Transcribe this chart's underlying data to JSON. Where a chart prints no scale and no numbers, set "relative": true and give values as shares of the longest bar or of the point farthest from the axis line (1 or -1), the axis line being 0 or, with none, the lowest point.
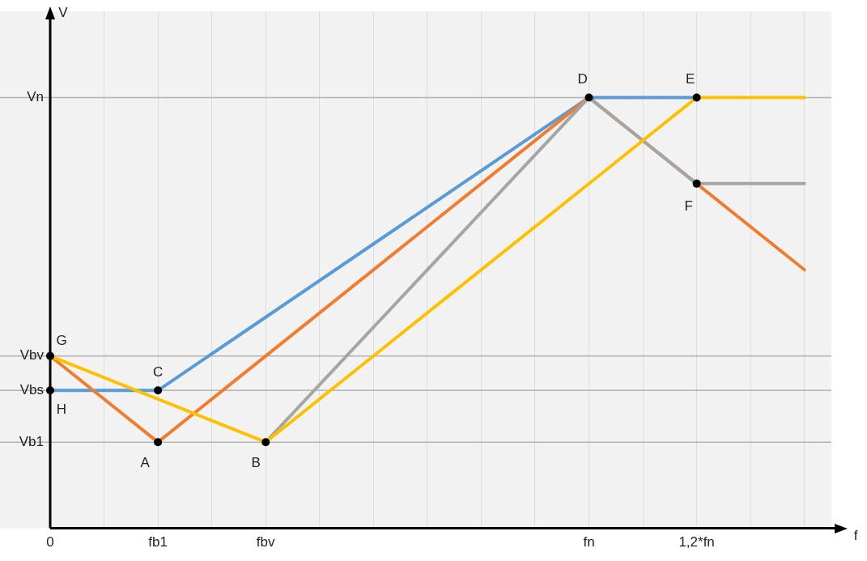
{
  "chart_data": {
    "type": "line",
    "relative": true,
    "xlabel": "f",
    "categories": [
      "0",
      null,
      "fb1",
      null,
      "fbv",
      null,
      null,
      null,
      null,
      null,
      "fn",
      null,
      "1,2*fn",
      null,
      null
    ],
    "grid": "x",
    "line_style": "solid",
    "ref_lines": [
      {
        "axis": "y",
        "value": 1,
        "label": "Vn",
        "color": "#b4b4b4"
      },
      {
        "axis": "y",
        "value": 0.4,
        "label": "Vbv",
        "color": "#b4b4b4"
      },
      {
        "axis": "y",
        "value": 0.32,
        "label": "Vbs",
        "color": "#b4b4b4"
      },
      {
        "axis": "y",
        "value": 0.2,
        "label": "Vb1",
        "color": "#b4b4b4"
      }
    ],
    "series": [
      {
        "color": "#5b9bd5",
        "values": [
          0.32,
          null,
          0.32,
          null,
          null,
          null,
          null,
          null,
          null,
          null,
          1,
          null,
          1,
          null,
          null
        ]
      },
      {
        "color": "#ed7d31",
        "values": [
          0.4,
          null,
          0.2,
          null,
          null,
          null,
          null,
          null,
          null,
          null,
          1,
          null,
          0.8,
          null,
          0.6
        ]
      },
      {
        "color": "#a5a5a5",
        "values": [
          null,
          null,
          null,
          null,
          0.2,
          null,
          null,
          null,
          null,
          null,
          1,
          null,
          0.8,
          null,
          0.8
        ]
      },
      {
        "color": "#ffc000",
        "values": [
          0.4,
          null,
          null,
          null,
          0.2,
          null,
          null,
          null,
          null,
          null,
          null,
          null,
          1,
          null,
          1
        ]
      }
    ],
    "annotations": [
      {
        "text": "G",
        "x": "0",
        "y": 0.4
      },
      {
        "text": "H",
        "x": "0",
        "y": 0.32
      },
      {
        "text": "C",
        "x": "fb1",
        "y": 0.32
      },
      {
        "text": "A",
        "x": "fb1",
        "y": 0.2
      },
      {
        "text": "B",
        "x": "fbv",
        "y": 0.2
      },
      {
        "text": "D",
        "x": "fn",
        "y": 1
      },
      {
        "text": "E",
        "x": "1,2*fn",
        "y": 1
      },
      {
        "text": "F",
        "x": "1,2*fn",
        "y": 0.8
      },
      "V"
    ]
  }
}
